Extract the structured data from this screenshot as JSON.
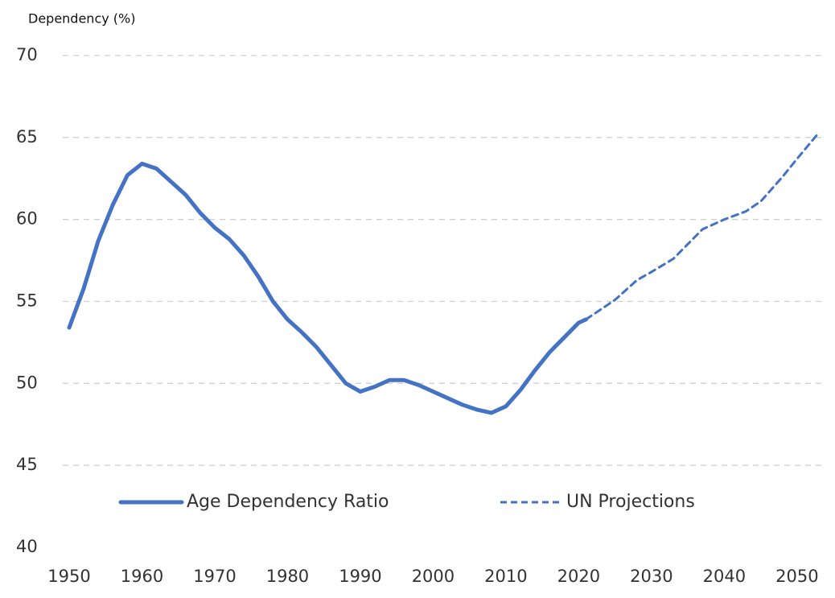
{
  "chart_data": {
    "type": "line",
    "y_label": "Dependency (%)",
    "series": [
      {
        "name": "Age Dependency Ratio",
        "color": "#4472c4",
        "style": "solid",
        "x": [
          1950,
          1952,
          1954,
          1956,
          1958,
          1960,
          1962,
          1964,
          1966,
          1968,
          1970,
          1972,
          1974,
          1976,
          1978,
          1980,
          1982,
          1984,
          1986,
          1988,
          1990,
          1992,
          1994,
          1996,
          1998,
          2000,
          2002,
          2004,
          2006,
          2008,
          2010,
          2012,
          2014,
          2016,
          2018,
          2020,
          2021
        ],
        "values": [
          53.4,
          55.8,
          58.7,
          60.9,
          62.7,
          63.4,
          63.1,
          62.3,
          61.5,
          60.4,
          59.5,
          58.8,
          57.8,
          56.5,
          55.0,
          53.9,
          53.1,
          52.2,
          51.1,
          50.0,
          49.5,
          49.8,
          50.2,
          50.2,
          49.9,
          49.5,
          49.1,
          48.7,
          48.4,
          48.2,
          48.6,
          49.6,
          50.8,
          51.9,
          52.8,
          53.7,
          53.9
        ]
      },
      {
        "name": "UN Projections",
        "color": "#4472c4",
        "style": "dashed",
        "x": [
          2021,
          2025,
          2028,
          2030,
          2033,
          2035,
          2037,
          2040,
          2043,
          2045,
          2048,
          2050,
          2053
        ],
        "values": [
          53.9,
          55.1,
          56.3,
          56.8,
          57.6,
          58.5,
          59.4,
          60.0,
          60.5,
          61.1,
          62.6,
          63.7,
          65.3
        ]
      }
    ],
    "xlim": [
      1950,
      2053
    ],
    "xticks": [
      1950,
      1960,
      1970,
      1980,
      1990,
      2000,
      2010,
      2020,
      2030,
      2040,
      2050
    ],
    "ylim": [
      40,
      70
    ],
    "yticks": [
      40,
      45,
      50,
      55,
      60,
      65,
      70
    ],
    "grid": true,
    "legend": "bottom"
  }
}
